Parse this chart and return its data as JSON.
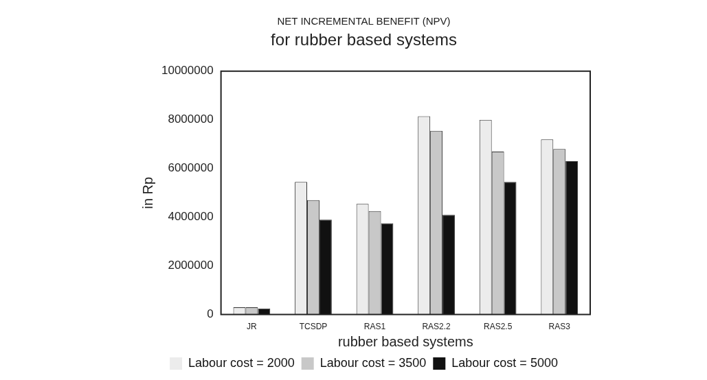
{
  "chart_data": {
    "type": "bar",
    "title": "NET INCREMENTAL BENEFIT (NPV)",
    "subtitle": "for rubber based systems",
    "xlabel": "rubber based systems",
    "ylabel": "in Rp",
    "categories": [
      "JR",
      "TCSDP",
      "RAS1",
      "RAS2.2",
      "RAS2.5",
      "RAS3"
    ],
    "series": [
      {
        "name": "Labour cost = 2000",
        "color": "#ececec",
        "values": [
          300000,
          5450000,
          4550000,
          8150000,
          8000000,
          7200000
        ]
      },
      {
        "name": "Labour cost = 3500",
        "color": "#c8c8c8",
        "values": [
          300000,
          4700000,
          4250000,
          7550000,
          6700000,
          6800000
        ]
      },
      {
        "name": "Labour cost = 5000",
        "color": "#111111",
        "values": [
          250000,
          3900000,
          3750000,
          4100000,
          5450000,
          6300000
        ]
      }
    ],
    "ylim": [
      0,
      10000000
    ],
    "yticks": [
      0,
      2000000,
      4000000,
      6000000,
      8000000,
      10000000
    ],
    "grid": false,
    "legend": "bottom"
  }
}
